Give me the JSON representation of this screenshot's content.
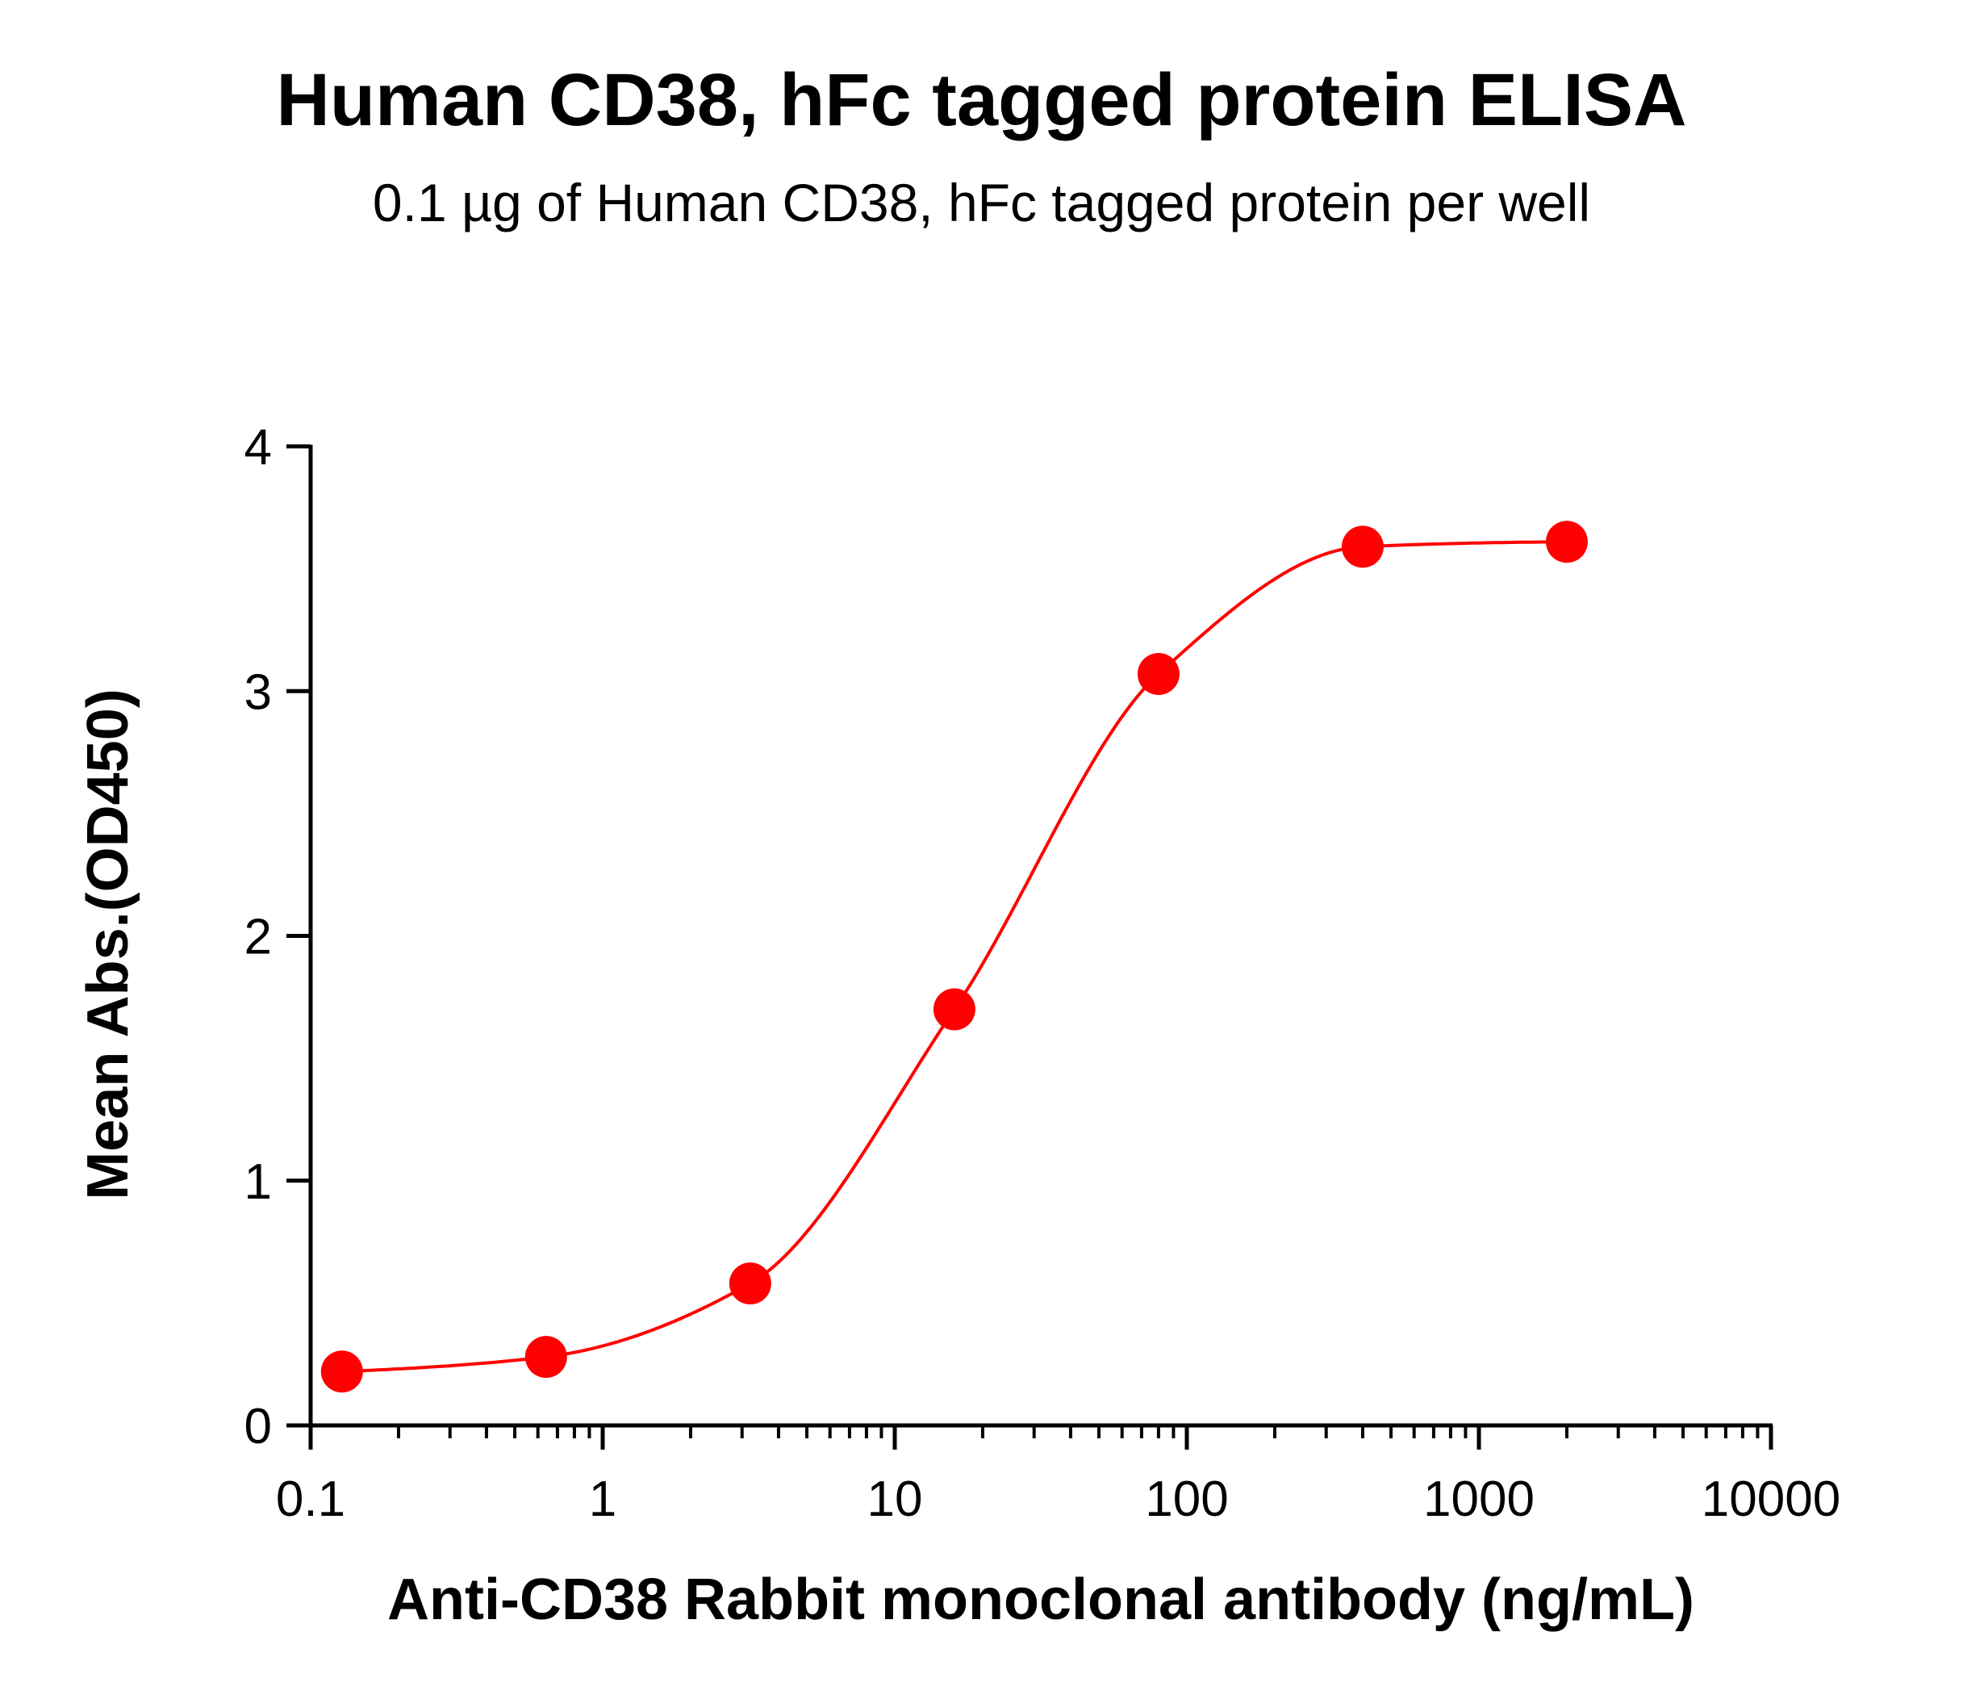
{
  "chart_data": {
    "type": "scatter",
    "title": "Human CD38, hFc tagged protein ELISA",
    "subtitle": "0.1 µg of Human CD38, hFc tagged protein per well",
    "xlabel": "Anti-CD38 Rabbit monoclonal antibody (ng/mL)",
    "ylabel": "Mean Abs.(OD450)",
    "xscale": "log",
    "xlim": [
      0.1,
      10000
    ],
    "ylim": [
      0,
      4
    ],
    "x_ticks": [
      "0.1",
      "1",
      "10",
      "100",
      "1000",
      "10000"
    ],
    "y_ticks": [
      "0",
      "1",
      "2",
      "3",
      "4"
    ],
    "grid": false,
    "legend": "none",
    "series": [
      {
        "x": [
          0.128,
          0.64,
          3.2,
          16,
          80,
          400,
          2000
        ],
        "y": [
          0.22,
          0.28,
          0.58,
          1.7,
          3.07,
          3.59,
          3.61
        ],
        "color": "#ff0000",
        "marker": "circle",
        "fit": "4PL sigmoidal curve"
      }
    ]
  }
}
